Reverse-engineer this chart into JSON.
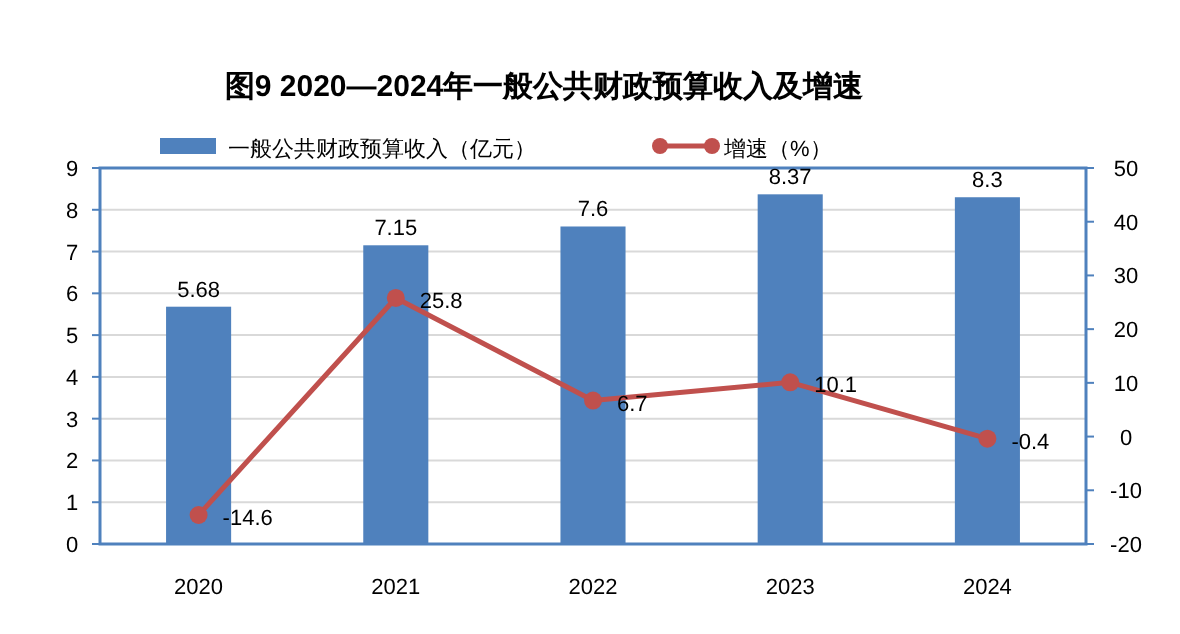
{
  "chart_data": {
    "type": "bar",
    "title": "图9  2020—2024年一般公共财政预算收入及增速",
    "categories": [
      "2020",
      "2021",
      "2022",
      "2023",
      "2024"
    ],
    "series": [
      {
        "name": "一般公共财政预算收入（亿元）",
        "color": "#4f81bd",
        "values": [
          5.68,
          7.15,
          7.6,
          8.37,
          8.3
        ]
      },
      {
        "name": "增速（%）",
        "type": "line",
        "axis": "y2",
        "color": "#c0504d",
        "marker": "circle",
        "line_style": "solid",
        "values": [
          -14.6,
          25.8,
          6.7,
          10.1,
          -0.4
        ]
      }
    ],
    "ylim": [
      0,
      9
    ],
    "yticks": [
      0,
      1,
      2,
      3,
      4,
      5,
      6,
      7,
      8,
      9
    ],
    "y2lim": [
      -20,
      50
    ],
    "y2ticks": [
      -20,
      -10,
      0,
      10,
      20,
      30,
      40,
      50
    ],
    "grid": "y",
    "legend": "top",
    "data_labels": true
  }
}
